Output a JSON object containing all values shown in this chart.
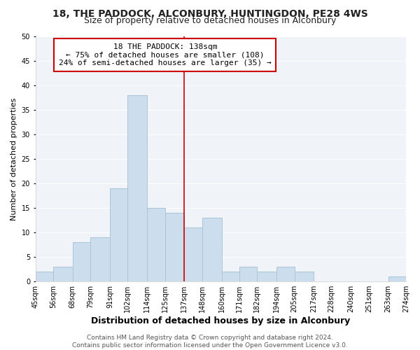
{
  "title": "18, THE PADDOCK, ALCONBURY, HUNTINGDON, PE28 4WS",
  "subtitle": "Size of property relative to detached houses in Alconbury",
  "xlabel": "Distribution of detached houses by size in Alconbury",
  "ylabel": "Number of detached properties",
  "bar_color": "#ccdded",
  "bar_edge_color": "#aac4d8",
  "bin_edges": [
    45,
    56,
    68,
    79,
    91,
    102,
    114,
    125,
    137,
    148,
    160,
    171,
    182,
    194,
    205,
    217,
    228,
    240,
    251,
    263,
    274
  ],
  "counts": [
    2,
    3,
    8,
    9,
    19,
    38,
    15,
    14,
    11,
    13,
    2,
    3,
    2,
    3,
    2,
    0,
    0,
    0,
    0,
    1
  ],
  "tick_labels": [
    "45sqm",
    "56sqm",
    "68sqm",
    "79sqm",
    "91sqm",
    "102sqm",
    "114sqm",
    "125sqm",
    "137sqm",
    "148sqm",
    "160sqm",
    "171sqm",
    "182sqm",
    "194sqm",
    "205sqm",
    "217sqm",
    "228sqm",
    "240sqm",
    "251sqm",
    "263sqm",
    "274sqm"
  ],
  "vline_x": 137,
  "vline_color": "#cc0000",
  "ylim": [
    0,
    50
  ],
  "yticks": [
    0,
    5,
    10,
    15,
    20,
    25,
    30,
    35,
    40,
    45,
    50
  ],
  "annotation_title": "18 THE PADDOCK: 138sqm",
  "annotation_line1": "← 75% of detached houses are smaller (108)",
  "annotation_line2": "24% of semi-detached houses are larger (35) →",
  "annotation_box_color": "#ffffff",
  "annotation_box_edge": "#cc0000",
  "footer_line1": "Contains HM Land Registry data © Crown copyright and database right 2024.",
  "footer_line2": "Contains public sector information licensed under the Open Government Licence v3.0.",
  "background_color": "#ffffff",
  "plot_bg_color": "#f0f4f8",
  "grid_color": "#ffffff",
  "title_fontsize": 10,
  "subtitle_fontsize": 9,
  "xlabel_fontsize": 9,
  "ylabel_fontsize": 8,
  "tick_fontsize": 7,
  "footer_fontsize": 6.5,
  "ann_fontsize": 8
}
